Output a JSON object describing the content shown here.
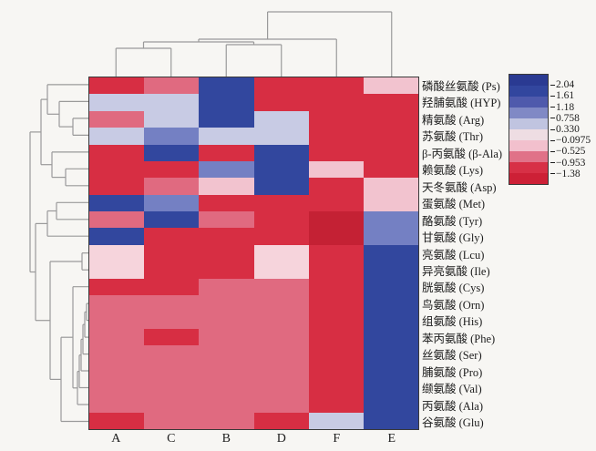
{
  "figure_title": "hierarchical-clustering-heatmap-of-amino-acids",
  "columns": [
    "A",
    "C",
    "B",
    "D",
    "F",
    "E"
  ],
  "rows": [
    "磷酸丝氨酸 (Ps)",
    "羟脯氨酸 (HYP)",
    "精氨酸 (Arg)",
    "苏氨酸 (Thr)",
    "β-丙氨酸 (β-Ala)",
    "赖氨酸 (Lys)",
    "天冬氨酸 (Asp)",
    "蛋氨酸 (Met)",
    "酪氨酸 (Tyr)",
    "甘氨酸 (Gly)",
    "亮氨酸 (Lcu)",
    "异亮氨酸 (Ile)",
    "胱氨酸 (Cys)",
    "鸟氨酸 (Orn)",
    "组氨酸 (His)",
    "苯丙氨酸 (Phe)",
    "丝氨酸 (Ser)",
    "脯氨酸 (Pro)",
    "缬氨酸 (Val)",
    "丙氨酸 (Ala)",
    "谷氨酸 (Glu)"
  ],
  "palette": {
    "darkblue": "#32479e",
    "slateblue": "#7480c3",
    "lavender": "#c8cbe4",
    "lightpink": "#f2c3cf",
    "palepink": "#f6d4dc",
    "salmon": "#e06a80",
    "red": "#d72e43",
    "darkred": "#c42134"
  },
  "chart_data": {
    "type": "heatmap",
    "title": "",
    "x_categories": [
      "A",
      "C",
      "B",
      "D",
      "F",
      "E"
    ],
    "y_categories": [
      "磷酸丝氨酸 (Ps)",
      "羟脯氨酸 (HYP)",
      "精氨酸 (Arg)",
      "苏氨酸 (Thr)",
      "β-丙氨酸 (β-Ala)",
      "赖氨酸 (Lys)",
      "天冬氨酸 (Asp)",
      "蛋氨酸 (Met)",
      "酪氨酸 (Tyr)",
      "甘氨酸 (Gly)",
      "亮氨酸 (Lcu)",
      "异亮氨酸 (Ile)",
      "胱氨酸 (Cys)",
      "鸟氨酸 (Orn)",
      "组氨酸 (His)",
      "苯丙氨酸 (Phe)",
      "丝氨酸 (Ser)",
      "脯氨酸 (Pro)",
      "缬氨酸 (Val)",
      "丙氨酸 (Ala)",
      "谷氨酸 (Glu)"
    ],
    "colorbar_ticks": [
      "2.04",
      "1.61",
      "1.18",
      "0.758",
      "0.330",
      "−0.0975",
      "−0.525",
      "−0.953",
      "−1.38"
    ],
    "colorbar_range": [
      -1.38,
      2.04
    ],
    "colorbar_band_colors_top_to_bottom": [
      "#2a3a92",
      "#32469e",
      "#4f5aac",
      "#8089c5",
      "#c0c4e0",
      "#eedde3",
      "#f2c0cd",
      "#e07288",
      "#d73046",
      "#cd2036"
    ],
    "color_value_estimates": {
      "darkblue": 1.8,
      "slateblue": 0.95,
      "lavender": 0.45,
      "lightpink": -0.2,
      "palepink": -0.1,
      "salmon": -0.75,
      "red": -1.15,
      "darkred": -1.38
    },
    "cell_colors": [
      [
        "red",
        "salmon",
        "darkblue",
        "red",
        "red",
        "lightpink"
      ],
      [
        "lavender",
        "lavender",
        "darkblue",
        "red",
        "red",
        "red"
      ],
      [
        "salmon",
        "lavender",
        "darkblue",
        "lavender",
        "red",
        "red"
      ],
      [
        "lavender",
        "slateblue",
        "lavender",
        "lavender",
        "red",
        "red"
      ],
      [
        "red",
        "darkblue",
        "red",
        "darkblue",
        "red",
        "red"
      ],
      [
        "red",
        "red",
        "slateblue",
        "darkblue",
        "lightpink",
        "red"
      ],
      [
        "red",
        "salmon",
        "lightpink",
        "darkblue",
        "red",
        "lightpink"
      ],
      [
        "darkblue",
        "slateblue",
        "red",
        "red",
        "red",
        "lightpink"
      ],
      [
        "salmon",
        "darkblue",
        "salmon",
        "red",
        "darkred",
        "slateblue"
      ],
      [
        "darkblue",
        "red",
        "red",
        "red",
        "darkred",
        "slateblue"
      ],
      [
        "palepink",
        "red",
        "red",
        "palepink",
        "red",
        "darkblue"
      ],
      [
        "palepink",
        "red",
        "red",
        "palepink",
        "red",
        "darkblue"
      ],
      [
        "red",
        "red",
        "salmon",
        "salmon",
        "red",
        "darkblue"
      ],
      [
        "salmon",
        "salmon",
        "salmon",
        "salmon",
        "red",
        "darkblue"
      ],
      [
        "salmon",
        "salmon",
        "salmon",
        "salmon",
        "red",
        "darkblue"
      ],
      [
        "salmon",
        "red",
        "salmon",
        "salmon",
        "red",
        "darkblue"
      ],
      [
        "salmon",
        "salmon",
        "salmon",
        "salmon",
        "red",
        "darkblue"
      ],
      [
        "salmon",
        "salmon",
        "salmon",
        "salmon",
        "red",
        "darkblue"
      ],
      [
        "salmon",
        "salmon",
        "salmon",
        "salmon",
        "red",
        "darkblue"
      ],
      [
        "salmon",
        "salmon",
        "salmon",
        "salmon",
        "red",
        "darkblue"
      ],
      [
        "red",
        "salmon",
        "salmon",
        "red",
        "lavender",
        "darkblue"
      ]
    ],
    "column_dendrogram_order": [
      "A",
      "C",
      "B",
      "D",
      "F",
      "E"
    ],
    "legend_position": "top-right",
    "grid": false
  }
}
